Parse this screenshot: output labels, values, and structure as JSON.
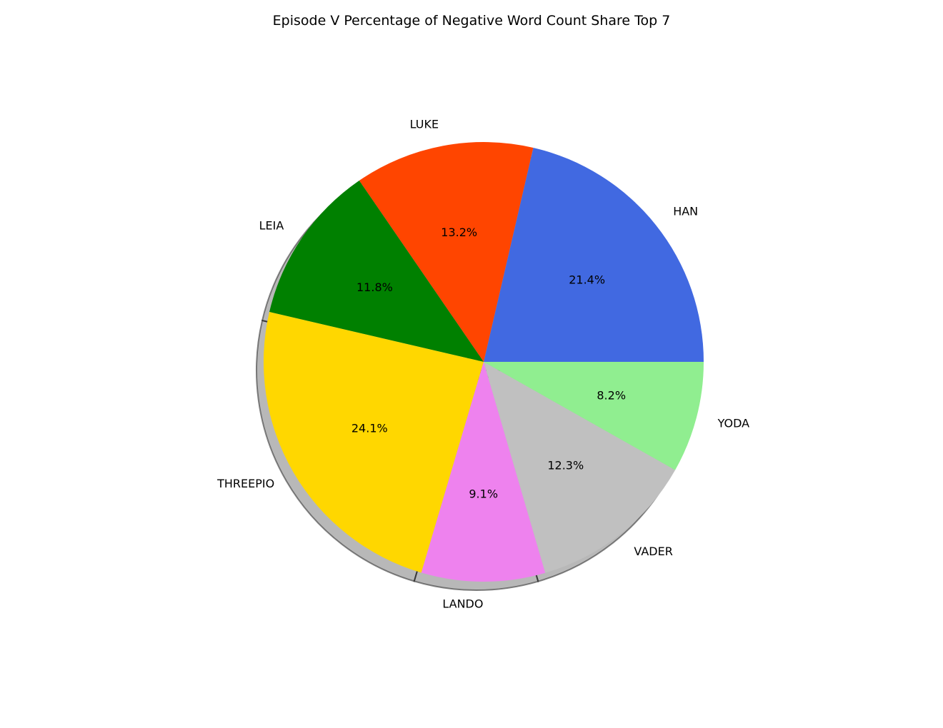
{
  "chart_data": {
    "type": "pie",
    "title": "Episode V Percentage of Negative Word Count Share Top 7",
    "start_angle_deg": 0,
    "direction": "counterclockwise",
    "shadow": true,
    "slices": [
      {
        "label": "HAN",
        "value": 21.4,
        "pct_label": "21.4%",
        "color": "#4169E1"
      },
      {
        "label": "LUKE",
        "value": 13.2,
        "pct_label": "13.2%",
        "color": "#FF4500"
      },
      {
        "label": "LEIA",
        "value": 11.8,
        "pct_label": "11.8%",
        "color": "#008000"
      },
      {
        "label": "THREEPIO",
        "value": 24.1,
        "pct_label": "24.1%",
        "color": "#FFD700"
      },
      {
        "label": "LANDO",
        "value": 9.1,
        "pct_label": "9.1%",
        "color": "#EE82EE"
      },
      {
        "label": "VADER",
        "value": 12.3,
        "pct_label": "12.3%",
        "color": "#C0C0C0"
      },
      {
        "label": "YODA",
        "value": 8.2,
        "pct_label": "8.2%",
        "color": "#90EE90"
      }
    ]
  }
}
